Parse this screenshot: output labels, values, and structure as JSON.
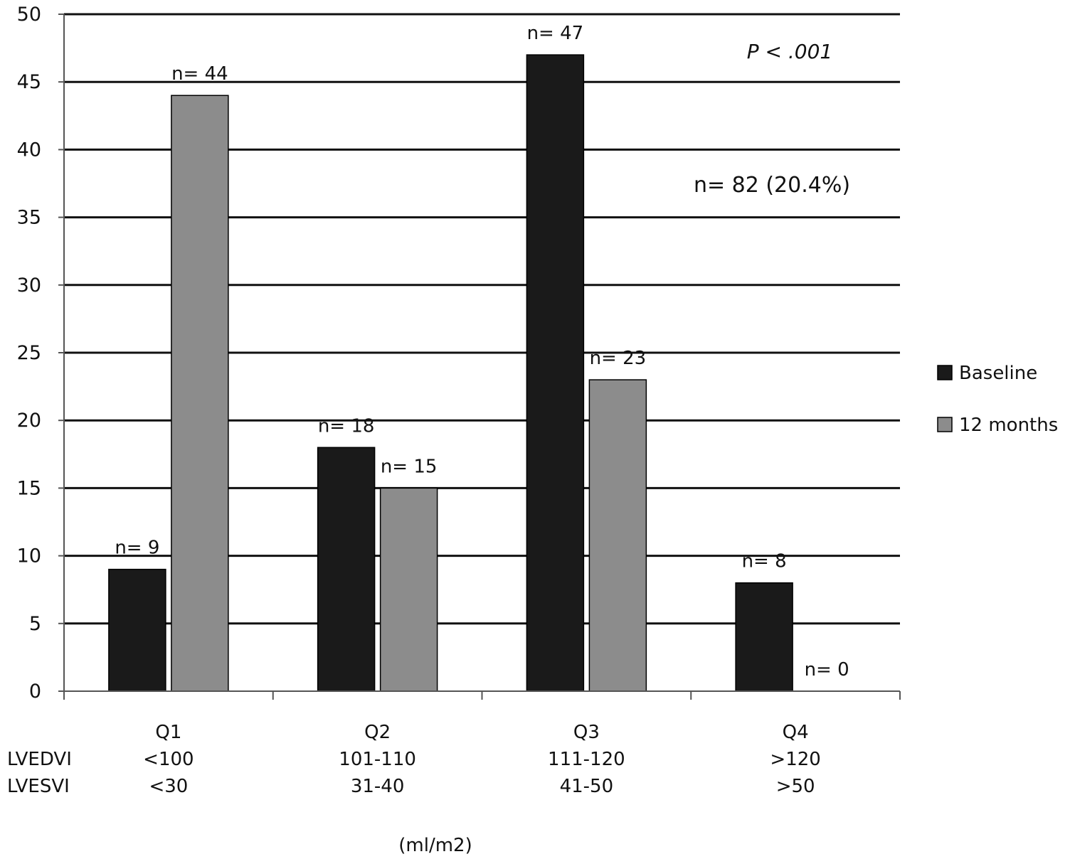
{
  "chart_data": {
    "type": "bar",
    "categories": [
      "Q1",
      "Q2",
      "Q3",
      "Q4"
    ],
    "category_rows": [
      {
        "label": "LVEDVI",
        "values": [
          "<100",
          "101-110",
          "111-120",
          ">120"
        ]
      },
      {
        "label": "LVESVI",
        "values": [
          "<30",
          "31-40",
          "41-50",
          ">50"
        ]
      }
    ],
    "series": [
      {
        "name": "Baseline",
        "color": "#1a1a1a",
        "values": [
          9,
          18,
          47,
          8
        ],
        "labels": [
          "n= 9",
          "n= 18",
          "n= 47",
          "n= 8"
        ]
      },
      {
        "name": "12 months",
        "color": "#8c8c8c",
        "values": [
          44,
          15,
          23,
          0
        ],
        "labels": [
          "n= 44",
          "n= 15",
          "n= 23",
          "n= 0"
        ]
      }
    ],
    "ylim": [
      0,
      50
    ],
    "yticks": [
      0,
      5,
      10,
      15,
      20,
      25,
      30,
      35,
      40,
      45,
      50
    ],
    "xlabel": "(ml/m2)",
    "ylabel": "",
    "grid": "horizontal",
    "legend_position": "right",
    "annotations": {
      "p_value": "P < .001",
      "total": "n= 82 (20.4%)"
    }
  }
}
